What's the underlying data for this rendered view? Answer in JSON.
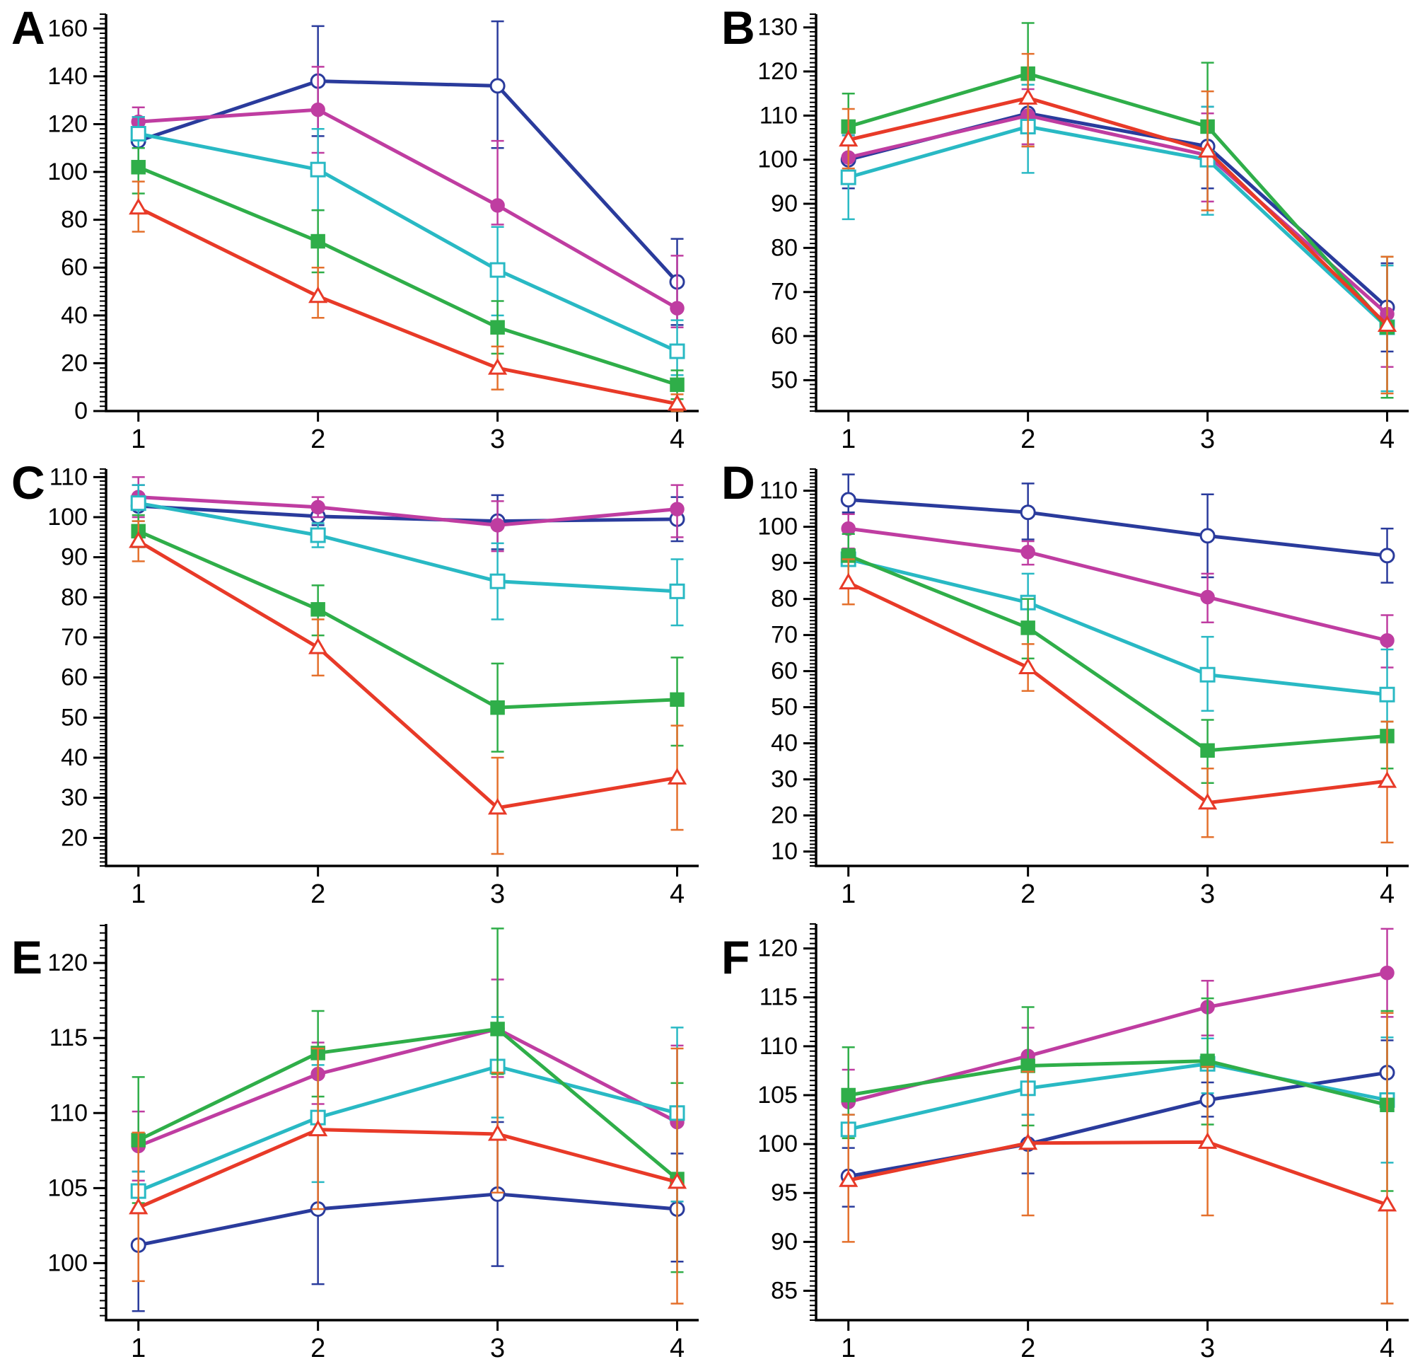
{
  "figure": {
    "background": "#ffffff",
    "axis_color": "#000000",
    "series_legend_note": "no legend shown; five repeated series identified by color and marker",
    "series_styles": [
      {
        "name": "dark-blue-open-circle",
        "color": "#2a3b9c",
        "marker": "circle",
        "fill": "open"
      },
      {
        "name": "magenta-filled-circle",
        "color": "#bf3da1",
        "marker": "circle",
        "fill": "solid"
      },
      {
        "name": "cyan-open-square",
        "color": "#29b9c4",
        "marker": "square",
        "fill": "open"
      },
      {
        "name": "green-filled-square",
        "color": "#2fae49",
        "marker": "square",
        "fill": "solid"
      },
      {
        "name": "red-open-triangle",
        "color": "#e83a28",
        "marker": "triangle",
        "fill": "open",
        "error_color": "#e4702c"
      }
    ]
  },
  "chart_data": [
    {
      "label": "A",
      "type": "line",
      "grid": false,
      "x": [
        1,
        2,
        3,
        4
      ],
      "x_tick_labels": [
        "1",
        "2",
        "3",
        "4"
      ],
      "x_range": [
        0.82,
        4.12
      ],
      "y_range": [
        0,
        166
      ],
      "y_major": {
        "start": 0,
        "end": 160,
        "step": 20
      },
      "y_minor_step": 2,
      "series": [
        {
          "name": "dark-blue-open-circle",
          "color": "#2a3b9c",
          "marker": "circle",
          "fill": "open",
          "values": [
            113,
            138,
            136,
            54
          ],
          "err_low": [
            103,
            115,
            110,
            36
          ],
          "err_high": [
            123,
            161,
            163,
            72
          ]
        },
        {
          "name": "magenta-filled-circle",
          "color": "#bf3da1",
          "marker": "circle",
          "fill": "solid",
          "values": [
            121,
            126,
            86,
            43
          ],
          "err_low": [
            115,
            108,
            78,
            35
          ],
          "err_high": [
            127,
            144,
            113,
            65
          ]
        },
        {
          "name": "cyan-open-square",
          "color": "#29b9c4",
          "marker": "square",
          "fill": "open",
          "values": [
            116,
            101,
            59,
            25
          ],
          "err_low": [
            110,
            84,
            40,
            15
          ],
          "err_high": [
            123,
            118,
            77,
            38
          ]
        },
        {
          "name": "green-filled-square",
          "color": "#2fae49",
          "marker": "square",
          "fill": "solid",
          "values": [
            102,
            71,
            35,
            11
          ],
          "err_low": [
            91,
            58,
            24,
            5
          ],
          "err_high": [
            110,
            84,
            46,
            17
          ]
        },
        {
          "name": "red-open-triangle",
          "color": "#e83a28",
          "error_color": "#e4702c",
          "marker": "triangle",
          "fill": "open",
          "values": [
            85,
            48,
            18,
            3
          ],
          "err_low": [
            75,
            39,
            9,
            0
          ],
          "err_high": [
            96,
            60,
            27,
            7
          ]
        }
      ]
    },
    {
      "label": "B",
      "type": "line",
      "grid": false,
      "x": [
        1,
        2,
        3,
        4
      ],
      "x_tick_labels": [
        "1",
        "2",
        "3",
        "4"
      ],
      "x_range": [
        0.82,
        4.12
      ],
      "y_range": [
        43,
        133
      ],
      "y_major": {
        "start": 50,
        "end": 130,
        "step": 10
      },
      "y_minor_step": 1,
      "series": [
        {
          "name": "dark-blue-open-circle",
          "color": "#2a3b9c",
          "marker": "circle",
          "fill": "open",
          "values": [
            100,
            110.5,
            103,
            66.5
          ],
          "err_low": [
            93.5,
            103,
            93.5,
            56.5
          ],
          "err_high": [
            106,
            117,
            112,
            76.5
          ]
        },
        {
          "name": "magenta-filled-circle",
          "color": "#bf3da1",
          "marker": "circle",
          "fill": "solid",
          "values": [
            100.5,
            110,
            101,
            65
          ],
          "err_low": [
            95,
            103.5,
            90.5,
            53
          ],
          "err_high": [
            105.5,
            116,
            110.5,
            76
          ]
        },
        {
          "name": "cyan-open-square",
          "color": "#29b9c4",
          "marker": "square",
          "fill": "open",
          "values": [
            96,
            107.5,
            100,
            62
          ],
          "err_low": [
            86.5,
            97,
            87.5,
            47.5
          ],
          "err_high": [
            105.5,
            117,
            112,
            76
          ]
        },
        {
          "name": "green-filled-square",
          "color": "#2fae49",
          "marker": "square",
          "fill": "solid",
          "values": [
            107.5,
            119.5,
            107.5,
            62
          ],
          "err_low": [
            104,
            113.5,
            102,
            46
          ],
          "err_high": [
            115,
            131,
            122,
            78
          ]
        },
        {
          "name": "red-open-triangle",
          "color": "#e83a28",
          "error_color": "#e4702c",
          "marker": "triangle",
          "fill": "open",
          "values": [
            104.5,
            114,
            102,
            62.5
          ],
          "err_low": [
            98,
            103,
            88.5,
            47
          ],
          "err_high": [
            111.5,
            124,
            115.5,
            78
          ]
        }
      ]
    },
    {
      "label": "C",
      "type": "line",
      "grid": false,
      "x": [
        1,
        2,
        3,
        4
      ],
      "x_tick_labels": [
        "1",
        "2",
        "3",
        "4"
      ],
      "x_range": [
        0.82,
        4.12
      ],
      "y_range": [
        13,
        112
      ],
      "y_major": {
        "start": 20,
        "end": 110,
        "step": 10
      },
      "y_minor_step": 1,
      "series": [
        {
          "name": "dark-blue-open-circle",
          "color": "#2a3b9c",
          "marker": "circle",
          "fill": "open",
          "values": [
            102.8,
            100.2,
            99,
            99.5
          ],
          "err_low": [
            97.5,
            98,
            92,
            94
          ],
          "err_high": [
            108,
            103,
            105.5,
            105
          ]
        },
        {
          "name": "magenta-filled-circle",
          "color": "#bf3da1",
          "marker": "circle",
          "fill": "solid",
          "values": [
            105,
            102.5,
            98,
            102
          ],
          "err_low": [
            100,
            100,
            91.5,
            95
          ],
          "err_high": [
            110,
            105,
            104,
            108
          ]
        },
        {
          "name": "cyan-open-square",
          "color": "#29b9c4",
          "marker": "square",
          "fill": "open",
          "values": [
            103.5,
            95.5,
            84,
            81.5
          ],
          "err_low": [
            99,
            92.5,
            74.5,
            73
          ],
          "err_high": [
            108,
            98.5,
            93.5,
            89.5
          ]
        },
        {
          "name": "green-filled-square",
          "color": "#2fae49",
          "marker": "square",
          "fill": "solid",
          "values": [
            96.5,
            77,
            52.5,
            54.5
          ],
          "err_low": [
            92.5,
            70.5,
            41.5,
            43
          ],
          "err_high": [
            100.5,
            83,
            63.5,
            65
          ]
        },
        {
          "name": "red-open-triangle",
          "color": "#e83a28",
          "error_color": "#e4702c",
          "marker": "triangle",
          "fill": "open",
          "values": [
            94,
            67.5,
            27.5,
            35
          ],
          "err_low": [
            89,
            60.5,
            16,
            22
          ],
          "err_high": [
            99,
            74.5,
            40,
            48
          ]
        }
      ]
    },
    {
      "label": "D",
      "type": "line",
      "grid": false,
      "x": [
        1,
        2,
        3,
        4
      ],
      "x_tick_labels": [
        "1",
        "2",
        "3",
        "4"
      ],
      "x_range": [
        0.82,
        4.12
      ],
      "y_range": [
        6,
        116
      ],
      "y_major": {
        "start": 10,
        "end": 110,
        "step": 10
      },
      "y_minor_step": 1,
      "series": [
        {
          "name": "dark-blue-open-circle",
          "color": "#2a3b9c",
          "marker": "circle",
          "fill": "open",
          "values": [
            107.5,
            104,
            97.5,
            92
          ],
          "err_low": [
            104,
            96.5,
            86,
            84.5
          ],
          "err_high": [
            114.5,
            112,
            109,
            99.5
          ]
        },
        {
          "name": "magenta-filled-circle",
          "color": "#bf3da1",
          "marker": "circle",
          "fill": "solid",
          "values": [
            99.5,
            93,
            80.5,
            68.5
          ],
          "err_low": [
            94,
            89.5,
            73.5,
            61
          ],
          "err_high": [
            103.5,
            96,
            87,
            75.5
          ]
        },
        {
          "name": "cyan-open-square",
          "color": "#29b9c4",
          "marker": "square",
          "fill": "open",
          "values": [
            91,
            79,
            59,
            53.5
          ],
          "err_low": [
            83,
            71,
            49,
            41
          ],
          "err_high": [
            98,
            87,
            69.5,
            66
          ]
        },
        {
          "name": "green-filled-square",
          "color": "#2fae49",
          "marker": "square",
          "fill": "solid",
          "values": [
            92,
            72,
            38,
            42
          ],
          "err_low": [
            84,
            63.5,
            29,
            33
          ],
          "err_high": [
            98,
            80,
            46.5,
            46
          ]
        },
        {
          "name": "red-open-triangle",
          "color": "#e83a28",
          "error_color": "#e4702c",
          "marker": "triangle",
          "fill": "open",
          "values": [
            84.5,
            61,
            23.5,
            29.5
          ],
          "err_low": [
            78.5,
            54.5,
            14,
            12.5
          ],
          "err_high": [
            91,
            67.5,
            33,
            46
          ]
        }
      ]
    },
    {
      "label": "E",
      "type": "line",
      "grid": false,
      "x": [
        1,
        2,
        3,
        4
      ],
      "x_tick_labels": [
        "1",
        "2",
        "3",
        "4"
      ],
      "x_range": [
        0.82,
        4.12
      ],
      "y_range": [
        96.2,
        122.6
      ],
      "y_major": {
        "start": 100,
        "end": 120,
        "step": 5
      },
      "y_minor_step": 0.5,
      "series": [
        {
          "name": "dark-blue-open-circle",
          "color": "#2a3b9c",
          "marker": "circle",
          "fill": "open",
          "values": [
            101.2,
            103.6,
            104.6,
            103.6
          ],
          "err_low": [
            96.8,
            98.6,
            99.8,
            100.1
          ],
          "err_high": [
            106.1,
            108.8,
            109.4,
            107.3
          ]
        },
        {
          "name": "magenta-filled-circle",
          "color": "#bf3da1",
          "marker": "circle",
          "fill": "solid",
          "values": [
            107.8,
            112.6,
            115.6,
            109.4
          ],
          "err_low": [
            105.5,
            110.6,
            112.4,
            104.1
          ],
          "err_high": [
            110.1,
            114.7,
            118.9,
            114.5
          ]
        },
        {
          "name": "cyan-open-square",
          "color": "#29b9c4",
          "marker": "square",
          "fill": "open",
          "values": [
            104.8,
            109.7,
            113.1,
            110.0
          ],
          "err_low": [
            103.6,
            105.4,
            109.7,
            104.1
          ],
          "err_high": [
            106.1,
            113.2,
            116.4,
            115.7
          ]
        },
        {
          "name": "green-filled-square",
          "color": "#2fae49",
          "marker": "square",
          "fill": "solid",
          "values": [
            108.2,
            114.0,
            115.6,
            105.6
          ],
          "err_low": [
            104.0,
            111.1,
            112.6,
            99.4
          ],
          "err_high": [
            112.4,
            116.8,
            122.3,
            112.0
          ]
        },
        {
          "name": "red-open-triangle",
          "color": "#e83a28",
          "error_color": "#e4702c",
          "marker": "triangle",
          "fill": "open",
          "values": [
            103.7,
            108.9,
            108.6,
            105.4
          ],
          "err_low": [
            98.8,
            103.6,
            104.7,
            97.3
          ],
          "err_high": [
            108.7,
            114.3,
            112.7,
            114.3
          ]
        }
      ]
    },
    {
      "label": "F",
      "type": "line",
      "grid": false,
      "x": [
        1,
        2,
        3,
        4
      ],
      "x_tick_labels": [
        "1",
        "2",
        "3",
        "4"
      ],
      "x_range": [
        0.82,
        4.12
      ],
      "y_range": [
        82,
        122.5
      ],
      "y_major": {
        "start": 85,
        "end": 120,
        "step": 5
      },
      "y_minor_step": 0.5,
      "series": [
        {
          "name": "dark-blue-open-circle",
          "color": "#2a3b9c",
          "marker": "circle",
          "fill": "open",
          "values": [
            96.7,
            100.0,
            104.5,
            107.3
          ],
          "err_low": [
            93.6,
            97.0,
            102.8,
            103.9
          ],
          "err_high": [
            99.6,
            103.0,
            106.3,
            110.6
          ]
        },
        {
          "name": "magenta-filled-circle",
          "color": "#bf3da1",
          "marker": "circle",
          "fill": "solid",
          "values": [
            104.3,
            109.0,
            114.0,
            117.5
          ],
          "err_low": [
            101.0,
            106.2,
            111.1,
            113.0
          ],
          "err_high": [
            107.6,
            111.9,
            116.7,
            122.0
          ]
        },
        {
          "name": "cyan-open-square",
          "color": "#29b9c4",
          "marker": "square",
          "fill": "open",
          "values": [
            101.5,
            105.7,
            108.2,
            104.5
          ],
          "err_low": [
            100.8,
            103.0,
            105.2,
            98.1
          ],
          "err_high": [
            103.0,
            108.0,
            110.8,
            110.9
          ]
        },
        {
          "name": "green-filled-square",
          "color": "#2fae49",
          "marker": "square",
          "fill": "solid",
          "values": [
            105.0,
            108.0,
            108.5,
            104.0
          ],
          "err_low": [
            100.6,
            101.9,
            102.0,
            95.2
          ],
          "err_high": [
            109.9,
            114.0,
            114.9,
            113.6
          ]
        },
        {
          "name": "red-open-triangle",
          "color": "#e83a28",
          "error_color": "#e4702c",
          "marker": "triangle",
          "fill": "open",
          "values": [
            96.3,
            100.1,
            100.2,
            93.8
          ],
          "err_low": [
            90.0,
            92.7,
            92.7,
            83.7
          ],
          "err_high": [
            103.0,
            107.4,
            107.9,
            113.4
          ]
        }
      ]
    }
  ]
}
